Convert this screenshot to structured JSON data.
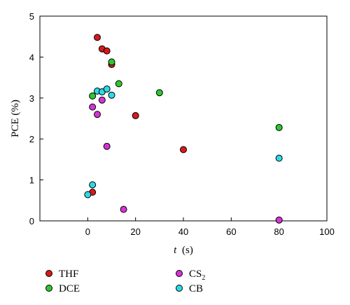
{
  "chart_data": {
    "type": "scatter",
    "xlabel": "t",
    "xunit": "(s)",
    "ylabel": "PCE (%)",
    "xlim": [
      -20,
      100
    ],
    "ylim": [
      0,
      5
    ],
    "xticks": [
      0,
      20,
      40,
      60,
      80,
      100
    ],
    "yticks": [
      0,
      1,
      2,
      3,
      4,
      5
    ],
    "grid": false,
    "legend_position": "bottom",
    "series": [
      {
        "name": "THF",
        "name_main": "THF",
        "name_sub": "",
        "color": "#d7191c",
        "points": [
          {
            "x": 4,
            "y": 4.48
          },
          {
            "x": 6,
            "y": 4.2
          },
          {
            "x": 8,
            "y": 4.15
          },
          {
            "x": 10,
            "y": 3.82
          },
          {
            "x": 20,
            "y": 2.57
          },
          {
            "x": 40,
            "y": 1.74
          },
          {
            "x": 2,
            "y": 0.7
          }
        ]
      },
      {
        "name": "DCE",
        "name_main": "DCE",
        "name_sub": "",
        "color": "#2ec72e",
        "points": [
          {
            "x": 10,
            "y": 3.88
          },
          {
            "x": 13,
            "y": 3.35
          },
          {
            "x": 30,
            "y": 3.13
          },
          {
            "x": 2,
            "y": 3.05
          },
          {
            "x": 80,
            "y": 2.28
          }
        ]
      },
      {
        "name": "CS2",
        "name_main": "CS",
        "name_sub": "2",
        "color": "#d633d6",
        "points": [
          {
            "x": 2,
            "y": 2.78
          },
          {
            "x": 4,
            "y": 2.6
          },
          {
            "x": 6,
            "y": 2.95
          },
          {
            "x": 8,
            "y": 1.82
          },
          {
            "x": 15,
            "y": 0.28
          },
          {
            "x": 80,
            "y": 0.02
          }
        ]
      },
      {
        "name": "CB",
        "name_main": "CB",
        "name_sub": "",
        "color": "#2ed9e6",
        "points": [
          {
            "x": 4,
            "y": 3.17
          },
          {
            "x": 6,
            "y": 3.15
          },
          {
            "x": 8,
            "y": 3.22
          },
          {
            "x": 10,
            "y": 3.07
          },
          {
            "x": 2,
            "y": 0.88
          },
          {
            "x": 0,
            "y": 0.64
          },
          {
            "x": 80,
            "y": 1.53
          }
        ]
      }
    ]
  }
}
